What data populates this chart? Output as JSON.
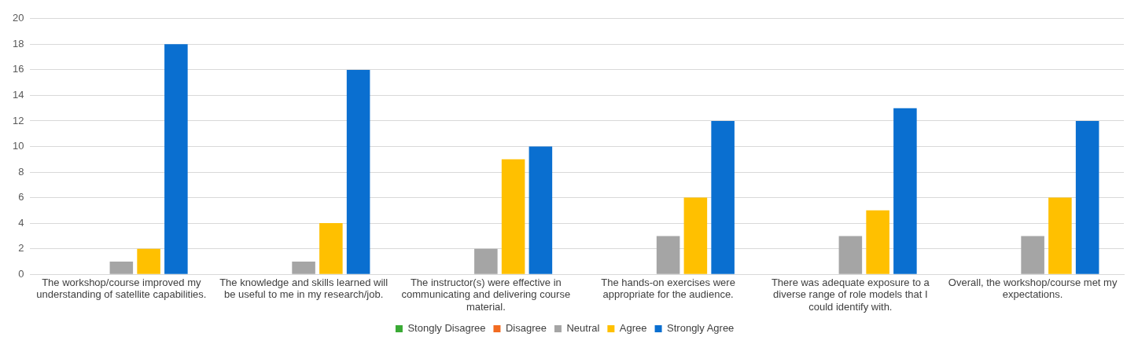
{
  "chart_data": {
    "type": "bar",
    "categories": [
      "The workshop/course improved my understanding of satellite capabilities.",
      "The knowledge and skills learned will be useful to me in my research/job.",
      "The instructor(s) were effective in communicating and delivering course material.",
      "The hands-on exercises were appropriate for the audience.",
      "There was adequate exposure to a diverse range of role models that I could identify with.",
      "Overall, the workshop/course met my expectations."
    ],
    "series": [
      {
        "name": "Stongly Disagree",
        "color": "#3aaa35",
        "values": [
          0,
          0,
          0,
          0,
          0,
          0
        ]
      },
      {
        "name": "Disagree",
        "color": "#f26b21",
        "values": [
          0,
          0,
          0,
          0,
          0,
          0
        ]
      },
      {
        "name": "Neutral",
        "color": "#a5a5a5",
        "values": [
          1,
          1,
          2,
          3,
          3,
          3
        ]
      },
      {
        "name": "Agree",
        "color": "#ffc000",
        "values": [
          2,
          4,
          9,
          6,
          5,
          6
        ]
      },
      {
        "name": "Strongly Agree",
        "color": "#0a6fd0",
        "values": [
          18,
          16,
          10,
          12,
          13,
          12
        ]
      }
    ],
    "ylim": [
      0,
      20
    ],
    "yticks": [
      0,
      2,
      4,
      6,
      8,
      10,
      12,
      14,
      16,
      18,
      20
    ],
    "grid": "y",
    "legend": "bottom"
  }
}
